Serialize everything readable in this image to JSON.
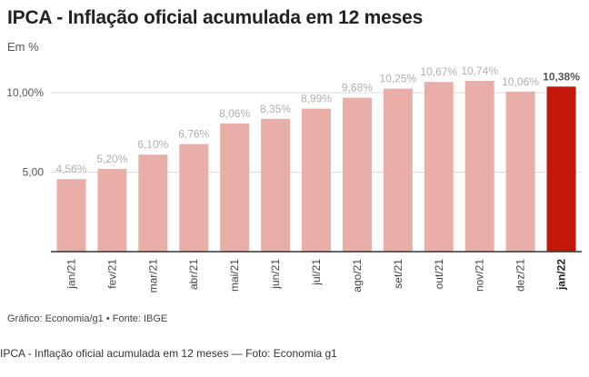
{
  "header": {
    "title": "IPCA - Inflação oficial acumulada em 12 meses",
    "subtitle": "Em %"
  },
  "source": "Gráfico: Economia/g1 • Fonte: IBGE",
  "caption": "IPCA - Inflação oficial acumulada em 12 meses — Foto: Economia g1",
  "colors": {
    "bar": "#eaaea9",
    "highlight": "#c4170c",
    "gridline": "#dddddd",
    "baseline": "#333333"
  },
  "chart_data": {
    "type": "bar",
    "categories": [
      "jan/21",
      "fev/21",
      "mar/21",
      "abr/21",
      "mai/21",
      "jun/21",
      "jul/21",
      "ago/21",
      "set/21",
      "out/21",
      "nov/21",
      "dez/21",
      "jan/22"
    ],
    "values": [
      4.56,
      5.2,
      6.1,
      6.76,
      8.06,
      8.35,
      8.99,
      9.68,
      10.25,
      10.67,
      10.74,
      10.06,
      10.38
    ],
    "data_labels": [
      "4,56%",
      "5,20%",
      "6,10%",
      "6,76%",
      "8,06%",
      "8,35%",
      "8,99%",
      "9,68%",
      "10,25%",
      "10,67%",
      "10,74%",
      "10,06%",
      "10,38%"
    ],
    "highlight_index": 12,
    "yticks": [
      5,
      10
    ],
    "ytick_labels": [
      "5,00",
      "10,00%"
    ],
    "ylim": [
      0,
      10.74
    ],
    "grid": true,
    "title": "IPCA - Inflação oficial acumulada em 12 meses",
    "ylabel": "Em %",
    "xlabel": ""
  }
}
